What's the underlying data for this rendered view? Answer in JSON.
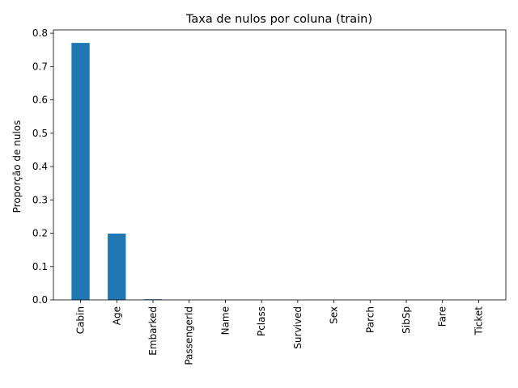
{
  "chart_data": {
    "type": "bar",
    "title": "Taxa de nulos por coluna (train)",
    "xlabel": "",
    "ylabel": "Proporção de nulos",
    "categories": [
      "Cabin",
      "Age",
      "Embarked",
      "PassengerId",
      "Name",
      "Pclass",
      "Survived",
      "Sex",
      "Parch",
      "SibSp",
      "Fare",
      "Ticket"
    ],
    "values": [
      0.771,
      0.199,
      0.002,
      0,
      0,
      0,
      0,
      0,
      0,
      0,
      0,
      0
    ],
    "ylim": [
      0,
      0.81
    ],
    "yticks": [
      "0.0",
      "0.1",
      "0.2",
      "0.3",
      "0.4",
      "0.5",
      "0.6",
      "0.7",
      "0.8"
    ],
    "bar_color": "#1f77b4",
    "grid": false,
    "legend": "none"
  }
}
